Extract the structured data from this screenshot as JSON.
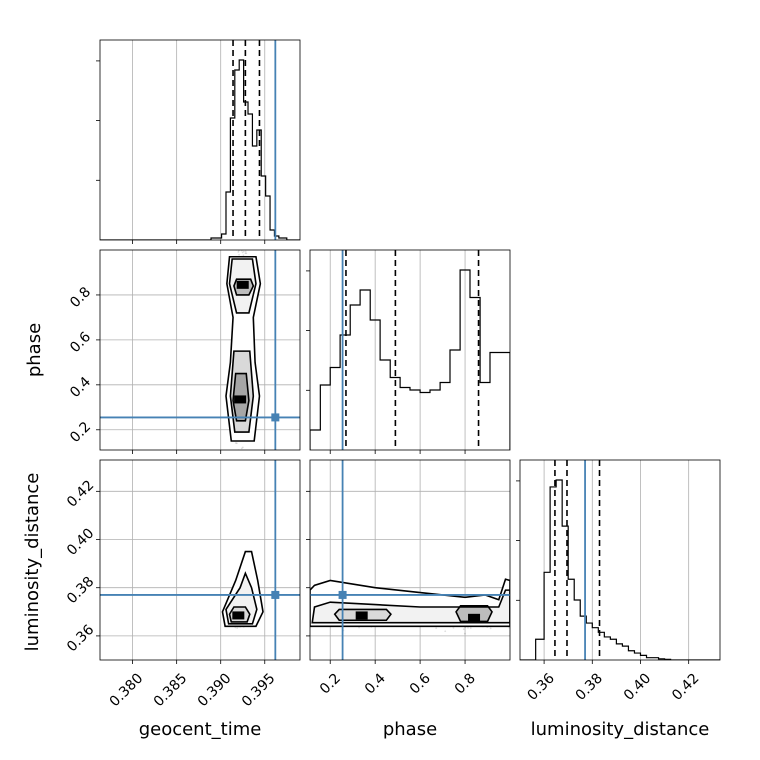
{
  "chart_data": {
    "type": "corner",
    "parameters": [
      "geocent_time",
      "phase",
      "luminosity_distance"
    ],
    "axis_ticks": {
      "geocent_time": [
        "0.380",
        "0.385",
        "0.390",
        "0.395"
      ],
      "phase": [
        "0.2",
        "0.4",
        "0.6",
        "0.8"
      ],
      "luminosity_distance": [
        "0.36",
        "0.38",
        "0.40",
        "0.42"
      ]
    },
    "axis_ranges": {
      "geocent_time": [
        0.3763,
        0.399
      ],
      "phase": [
        0.11,
        1.0
      ],
      "luminosity_distance": [
        0.35,
        0.433
      ]
    },
    "truth_values": {
      "geocent_time": 0.3962,
      "phase": 0.255,
      "luminosity_distance": 0.377
    },
    "quantiles": {
      "geocent_time": [
        0.3914,
        0.3928,
        0.3944
      ],
      "phase": [
        0.27,
        0.49,
        0.86
      ],
      "luminosity_distance": [
        0.3645,
        0.3695,
        0.383
      ]
    },
    "histograms": {
      "geocent_time": {
        "edges": [
          0.3763,
          0.3776,
          0.3788,
          0.3801,
          0.3813,
          0.3826,
          0.3838,
          0.3851,
          0.3864,
          0.3876,
          0.3889,
          0.3901,
          0.3906,
          0.3911,
          0.3916,
          0.3921,
          0.3926,
          0.3931,
          0.3936,
          0.3941,
          0.3946,
          0.3951,
          0.3956,
          0.3961,
          0.3966,
          0.3975,
          0.399
        ],
        "counts": [
          0,
          0,
          0,
          0,
          0,
          0,
          0,
          0,
          0,
          0,
          1,
          3,
          24,
          61,
          85,
          90,
          69,
          63,
          47,
          55,
          32,
          22,
          5,
          2,
          1,
          0
        ]
      },
      "phase": {
        "edges": [
          0.11,
          0.133,
          0.156,
          0.178,
          0.2,
          0.222,
          0.244,
          0.266,
          0.289,
          0.311,
          0.333,
          0.355,
          0.378,
          0.4,
          0.422,
          0.444,
          0.467,
          0.489,
          0.511,
          0.533,
          0.555,
          0.578,
          0.6,
          0.622,
          0.644,
          0.667,
          0.689,
          0.711,
          0.733,
          0.755,
          0.778,
          0.8,
          0.822,
          0.844,
          0.867,
          0.889,
          0.911,
          0.933,
          0.955,
          0.978,
          1.0
        ],
        "counts": [
          8,
          8,
          26,
          26,
          33,
          33,
          46,
          46,
          58,
          58,
          64,
          64,
          52,
          52,
          36,
          36,
          29,
          29,
          25,
          25,
          24,
          24,
          23,
          23,
          24,
          24,
          27,
          27,
          40,
          40,
          72,
          72,
          61,
          61,
          27,
          27,
          39,
          39,
          39,
          39
        ]
      },
      "luminosity_distance": {
        "edges": [
          0.35,
          0.3565,
          0.36,
          0.3625,
          0.365,
          0.3675,
          0.37,
          0.3725,
          0.375,
          0.3775,
          0.38,
          0.3825,
          0.385,
          0.3875,
          0.39,
          0.3925,
          0.395,
          0.3975,
          0.4,
          0.4025,
          0.405,
          0.4075,
          0.41,
          0.4125,
          0.433
        ],
        "counts": [
          0,
          9,
          38,
          75,
          78,
          58,
          35,
          26,
          19,
          16,
          14,
          12,
          10,
          9,
          7,
          6,
          4,
          3,
          2,
          1,
          1,
          0.5,
          0.3,
          0
        ]
      }
    },
    "densities_2d": [
      {
        "x": "geocent_time",
        "y": "phase",
        "peaks": [
          [
            0.3925,
            0.845
          ],
          [
            0.3922,
            0.335
          ]
        ],
        "contours": [
          [
            [
              0.391,
              0.97
            ],
            [
              0.394,
              0.97
            ],
            [
              0.3945,
              0.85
            ],
            [
              0.3937,
              0.7
            ],
            [
              0.3939,
              0.5
            ],
            [
              0.3944,
              0.35
            ],
            [
              0.3938,
              0.15
            ],
            [
              0.3912,
              0.15
            ],
            [
              0.3906,
              0.35
            ],
            [
              0.3911,
              0.5
            ],
            [
              0.3914,
              0.7
            ],
            [
              0.3907,
              0.85
            ]
          ],
          [
            [
              0.3913,
              0.96
            ],
            [
              0.3936,
              0.96
            ],
            [
              0.394,
              0.85
            ],
            [
              0.3932,
              0.72
            ],
            [
              0.3918,
              0.72
            ],
            [
              0.391,
              0.85
            ]
          ],
          [
            [
              0.3915,
              0.55
            ],
            [
              0.3933,
              0.55
            ],
            [
              0.3937,
              0.35
            ],
            [
              0.3932,
              0.19
            ],
            [
              0.3916,
              0.19
            ],
            [
              0.3911,
              0.35
            ]
          ],
          [
            [
              0.3918,
              0.87
            ],
            [
              0.3934,
              0.87
            ],
            [
              0.3937,
              0.84
            ],
            [
              0.3932,
              0.8
            ],
            [
              0.3918,
              0.8
            ],
            [
              0.3915,
              0.84
            ]
          ],
          [
            [
              0.3917,
              0.45
            ],
            [
              0.3929,
              0.45
            ],
            [
              0.3932,
              0.33
            ],
            [
              0.3928,
              0.24
            ],
            [
              0.3918,
              0.24
            ],
            [
              0.3914,
              0.33
            ]
          ]
        ]
      },
      {
        "x": "geocent_time",
        "y": "luminosity_distance",
        "peaks": [
          [
            0.392,
            0.3685
          ]
        ],
        "contours": [
          [
            [
              0.3905,
              0.364
            ],
            [
              0.394,
              0.364
            ],
            [
              0.3948,
              0.37
            ],
            [
              0.3942,
              0.383
            ],
            [
              0.3935,
              0.395
            ],
            [
              0.3928,
              0.395
            ],
            [
              0.3917,
              0.383
            ],
            [
              0.3902,
              0.37
            ]
          ],
          [
            [
              0.3909,
              0.365
            ],
            [
              0.3936,
              0.365
            ],
            [
              0.3941,
              0.371
            ],
            [
              0.3935,
              0.38
            ],
            [
              0.3928,
              0.386
            ],
            [
              0.3922,
              0.38
            ],
            [
              0.3906,
              0.371
            ]
          ],
          [
            [
              0.3912,
              0.3658
            ],
            [
              0.393,
              0.3658
            ],
            [
              0.3933,
              0.369
            ],
            [
              0.3928,
              0.372
            ],
            [
              0.3915,
              0.372
            ],
            [
              0.391,
              0.369
            ]
          ]
        ]
      },
      {
        "x": "phase",
        "y": "luminosity_distance",
        "peaks": [
          [
            0.34,
            0.3685
          ],
          [
            0.84,
            0.3675
          ]
        ],
        "contours": [
          [
            [
              0.11,
              0.364
            ],
            [
              1.0,
              0.364
            ],
            [
              1.0,
              0.383
            ],
            [
              0.98,
              0.3835
            ],
            [
              0.95,
              0.375
            ],
            [
              0.89,
              0.377
            ],
            [
              0.8,
              0.376
            ],
            [
              0.6,
              0.378
            ],
            [
              0.4,
              0.38
            ],
            [
              0.2,
              0.383
            ],
            [
              0.13,
              0.381
            ],
            [
              0.11,
              0.379
            ]
          ],
          [
            [
              0.12,
              0.3655
            ],
            [
              1.0,
              0.3655
            ],
            [
              1.0,
              0.379
            ],
            [
              0.98,
              0.379
            ],
            [
              0.95,
              0.372
            ],
            [
              0.8,
              0.372
            ],
            [
              0.6,
              0.372
            ],
            [
              0.4,
              0.373
            ],
            [
              0.2,
              0.374
            ],
            [
              0.13,
              0.372
            ]
          ],
          [
            [
              0.24,
              0.3665
            ],
            [
              0.45,
              0.3665
            ],
            [
              0.47,
              0.369
            ],
            [
              0.45,
              0.371
            ],
            [
              0.24,
              0.371
            ],
            [
              0.22,
              0.369
            ]
          ],
          [
            [
              0.78,
              0.366
            ],
            [
              0.9,
              0.366
            ],
            [
              0.92,
              0.37
            ],
            [
              0.9,
              0.3725
            ],
            [
              0.78,
              0.3725
            ],
            [
              0.76,
              0.37
            ]
          ]
        ]
      }
    ]
  }
}
